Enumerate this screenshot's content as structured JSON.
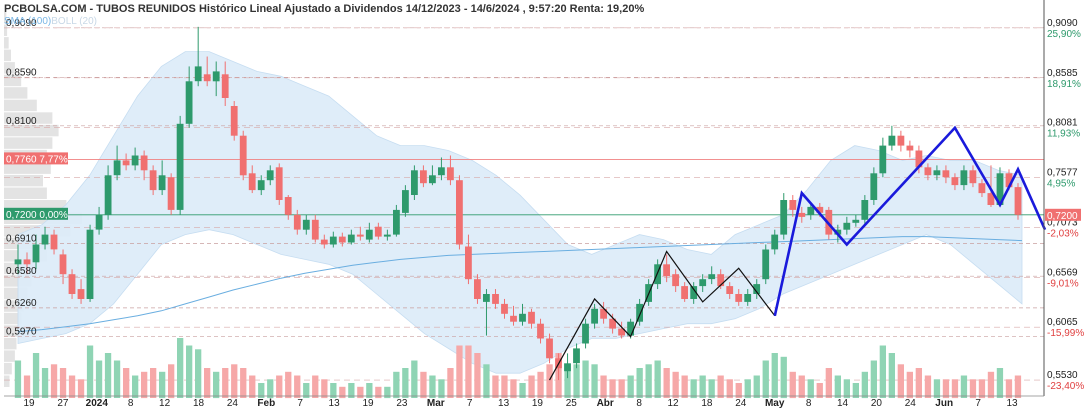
{
  "title": "PCBOLSA.COM - TUBOS REUNIDOS Histórico Lineal Ajustado a Dividendos 14/12/2023 - 14/6/2024 , 9:57:20 Renta: 19,20%",
  "indicators": {
    "sma": "SMA (100)",
    "boll": "BOLL (20)"
  },
  "colors": {
    "up": "#2e9a6c",
    "down": "#f07070",
    "band": "#dcebf8",
    "pattern": "#1a1adb",
    "zigzag": "#111111",
    "sma": "#6aaee0"
  },
  "chart_data": {
    "type": "candlestick",
    "ylim": [
      0.545,
      0.925
    ],
    "x_ticks": [
      "19",
      "27",
      "2024",
      "8",
      "12",
      "18",
      "24",
      "Feb",
      "7",
      "13",
      "19",
      "23",
      "Mar",
      "7",
      "13",
      "19",
      "25",
      "Abr",
      "8",
      "12",
      "18",
      "24",
      "May",
      "8",
      "14",
      "20",
      "24",
      "Jun",
      "7",
      "13"
    ],
    "left_price_labels": [
      "0,9090",
      "0,8590",
      "0,8100",
      "0,6910",
      "0,6580",
      "0,6260",
      "0,5970"
    ],
    "left_price_levels": [
      0.909,
      0.859,
      0.81,
      0.691,
      0.658,
      0.626,
      0.597
    ],
    "right_axis": [
      {
        "price": "0,9090",
        "pct": "25,90%",
        "level": 0.909
      },
      {
        "price": "0,8585",
        "pct": "18,91%",
        "level": 0.8585
      },
      {
        "price": "0,8081",
        "pct": "11,93%",
        "level": 0.8081
      },
      {
        "price": "0,7577",
        "pct": "4,95%",
        "level": 0.7577
      },
      {
        "price": "0,7073",
        "pct": "-2,03%",
        "level": 0.7073
      },
      {
        "price": "0,6569",
        "pct": "-9,01%",
        "level": 0.6569
      },
      {
        "price": "0,6065",
        "pct": "-15,99%",
        "level": 0.6065
      },
      {
        "price": "0,5530",
        "pct": "-23,40%",
        "level": 0.553
      }
    ],
    "reference_lines": [
      {
        "label": "0,7760",
        "pct": "7,77%",
        "level": 0.776
      },
      {
        "label": "0,7200",
        "pct": "0,00%",
        "level": 0.72
      }
    ],
    "last_price_label": "0,7200",
    "last_price": 0.72,
    "candles": [
      {
        "o": 0.67,
        "c": 0.675,
        "h": 0.69,
        "l": 0.66,
        "v": 50
      },
      {
        "o": 0.675,
        "c": 0.67,
        "h": 0.682,
        "l": 0.66,
        "v": 30
      },
      {
        "o": 0.672,
        "c": 0.69,
        "h": 0.7,
        "l": 0.665,
        "v": 60
      },
      {
        "o": 0.69,
        "c": 0.7,
        "h": 0.708,
        "l": 0.685,
        "v": 40
      },
      {
        "o": 0.7,
        "c": 0.685,
        "h": 0.705,
        "l": 0.68,
        "v": 45
      },
      {
        "o": 0.68,
        "c": 0.66,
        "h": 0.685,
        "l": 0.65,
        "v": 40
      },
      {
        "o": 0.66,
        "c": 0.64,
        "h": 0.665,
        "l": 0.635,
        "v": 30
      },
      {
        "o": 0.645,
        "c": 0.635,
        "h": 0.655,
        "l": 0.63,
        "v": 25
      },
      {
        "o": 0.635,
        "c": 0.705,
        "h": 0.71,
        "l": 0.632,
        "v": 70
      },
      {
        "o": 0.705,
        "c": 0.72,
        "h": 0.728,
        "l": 0.7,
        "v": 50
      },
      {
        "o": 0.72,
        "c": 0.76,
        "h": 0.77,
        "l": 0.715,
        "v": 60
      },
      {
        "o": 0.76,
        "c": 0.775,
        "h": 0.79,
        "l": 0.755,
        "v": 50
      },
      {
        "o": 0.775,
        "c": 0.77,
        "h": 0.782,
        "l": 0.765,
        "v": 40
      },
      {
        "o": 0.77,
        "c": 0.78,
        "h": 0.788,
        "l": 0.765,
        "v": 30
      },
      {
        "o": 0.78,
        "c": 0.765,
        "h": 0.785,
        "l": 0.755,
        "v": 35
      },
      {
        "o": 0.765,
        "c": 0.745,
        "h": 0.77,
        "l": 0.74,
        "v": 40
      },
      {
        "o": 0.745,
        "c": 0.76,
        "h": 0.775,
        "l": 0.74,
        "v": 35
      },
      {
        "o": 0.758,
        "c": 0.725,
        "h": 0.762,
        "l": 0.72,
        "v": 45
      },
      {
        "o": 0.725,
        "c": 0.812,
        "h": 0.82,
        "l": 0.72,
        "v": 80
      },
      {
        "o": 0.812,
        "c": 0.855,
        "h": 0.87,
        "l": 0.808,
        "v": 70
      },
      {
        "o": 0.855,
        "c": 0.87,
        "h": 0.91,
        "l": 0.85,
        "v": 65
      },
      {
        "o": 0.862,
        "c": 0.855,
        "h": 0.88,
        "l": 0.85,
        "v": 40
      },
      {
        "o": 0.855,
        "c": 0.865,
        "h": 0.875,
        "l": 0.84,
        "v": 35
      },
      {
        "o": 0.862,
        "c": 0.838,
        "h": 0.875,
        "l": 0.83,
        "v": 40
      },
      {
        "o": 0.83,
        "c": 0.8,
        "h": 0.835,
        "l": 0.795,
        "v": 45
      },
      {
        "o": 0.8,
        "c": 0.76,
        "h": 0.805,
        "l": 0.755,
        "v": 40
      },
      {
        "o": 0.762,
        "c": 0.745,
        "h": 0.77,
        "l": 0.742,
        "v": 30
      },
      {
        "o": 0.745,
        "c": 0.755,
        "h": 0.76,
        "l": 0.74,
        "v": 20
      },
      {
        "o": 0.755,
        "c": 0.765,
        "h": 0.77,
        "l": 0.75,
        "v": 25
      },
      {
        "o": 0.768,
        "c": 0.735,
        "h": 0.772,
        "l": 0.73,
        "v": 30
      },
      {
        "o": 0.738,
        "c": 0.72,
        "h": 0.74,
        "l": 0.715,
        "v": 35
      },
      {
        "o": 0.72,
        "c": 0.705,
        "h": 0.725,
        "l": 0.7,
        "v": 30
      },
      {
        "o": 0.705,
        "c": 0.715,
        "h": 0.72,
        "l": 0.7,
        "v": 20
      },
      {
        "o": 0.715,
        "c": 0.695,
        "h": 0.72,
        "l": 0.692,
        "v": 30
      },
      {
        "o": 0.695,
        "c": 0.69,
        "h": 0.7,
        "l": 0.686,
        "v": 25
      },
      {
        "o": 0.69,
        "c": 0.698,
        "h": 0.703,
        "l": 0.687,
        "v": 20
      },
      {
        "o": 0.698,
        "c": 0.692,
        "h": 0.702,
        "l": 0.688,
        "v": 15
      },
      {
        "o": 0.692,
        "c": 0.7,
        "h": 0.705,
        "l": 0.69,
        "v": 20
      },
      {
        "o": 0.7,
        "c": 0.698,
        "h": 0.708,
        "l": 0.694,
        "v": 15
      },
      {
        "o": 0.695,
        "c": 0.705,
        "h": 0.712,
        "l": 0.692,
        "v": 20
      },
      {
        "o": 0.708,
        "c": 0.698,
        "h": 0.712,
        "l": 0.695,
        "v": 15
      },
      {
        "o": 0.698,
        "c": 0.7,
        "h": 0.705,
        "l": 0.694,
        "v": 15
      },
      {
        "o": 0.7,
        "c": 0.725,
        "h": 0.73,
        "l": 0.698,
        "v": 35
      },
      {
        "o": 0.722,
        "c": 0.745,
        "h": 0.75,
        "l": 0.718,
        "v": 40
      },
      {
        "o": 0.74,
        "c": 0.765,
        "h": 0.77,
        "l": 0.735,
        "v": 50
      },
      {
        "o": 0.765,
        "c": 0.752,
        "h": 0.77,
        "l": 0.748,
        "v": 35
      },
      {
        "o": 0.752,
        "c": 0.76,
        "h": 0.77,
        "l": 0.75,
        "v": 30
      },
      {
        "o": 0.76,
        "c": 0.768,
        "h": 0.778,
        "l": 0.755,
        "v": 25
      },
      {
        "o": 0.768,
        "c": 0.755,
        "h": 0.78,
        "l": 0.75,
        "v": 40
      },
      {
        "o": 0.755,
        "c": 0.69,
        "h": 0.76,
        "l": 0.685,
        "v": 70
      },
      {
        "o": 0.688,
        "c": 0.655,
        "h": 0.7,
        "l": 0.65,
        "v": 70
      },
      {
        "o": 0.655,
        "c": 0.635,
        "h": 0.66,
        "l": 0.63,
        "v": 60
      },
      {
        "o": 0.632,
        "c": 0.64,
        "h": 0.645,
        "l": 0.598,
        "v": 45
      },
      {
        "o": 0.64,
        "c": 0.63,
        "h": 0.645,
        "l": 0.625,
        "v": 30
      },
      {
        "o": 0.63,
        "c": 0.62,
        "h": 0.635,
        "l": 0.615,
        "v": 30
      },
      {
        "o": 0.618,
        "c": 0.612,
        "h": 0.628,
        "l": 0.608,
        "v": 25
      },
      {
        "o": 0.612,
        "c": 0.62,
        "h": 0.63,
        "l": 0.608,
        "v": 20
      },
      {
        "o": 0.622,
        "c": 0.61,
        "h": 0.625,
        "l": 0.605,
        "v": 30
      },
      {
        "o": 0.61,
        "c": 0.595,
        "h": 0.615,
        "l": 0.59,
        "v": 35
      },
      {
        "o": 0.595,
        "c": 0.575,
        "h": 0.6,
        "l": 0.57,
        "v": 45
      },
      {
        "o": 0.575,
        "c": 0.565,
        "h": 0.58,
        "l": 0.553,
        "v": 60
      },
      {
        "o": 0.562,
        "c": 0.57,
        "h": 0.58,
        "l": 0.555,
        "v": 40
      },
      {
        "o": 0.57,
        "c": 0.585,
        "h": 0.59,
        "l": 0.565,
        "v": 45
      },
      {
        "o": 0.59,
        "c": 0.61,
        "h": 0.615,
        "l": 0.585,
        "v": 50
      },
      {
        "o": 0.61,
        "c": 0.625,
        "h": 0.63,
        "l": 0.605,
        "v": 45
      },
      {
        "o": 0.625,
        "c": 0.615,
        "h": 0.632,
        "l": 0.61,
        "v": 30
      },
      {
        "o": 0.615,
        "c": 0.605,
        "h": 0.62,
        "l": 0.6,
        "v": 25
      },
      {
        "o": 0.605,
        "c": 0.598,
        "h": 0.612,
        "l": 0.595,
        "v": 25
      },
      {
        "o": 0.598,
        "c": 0.612,
        "h": 0.615,
        "l": 0.595,
        "v": 30
      },
      {
        "o": 0.612,
        "c": 0.63,
        "h": 0.635,
        "l": 0.608,
        "v": 40
      },
      {
        "o": 0.632,
        "c": 0.65,
        "h": 0.655,
        "l": 0.628,
        "v": 45
      },
      {
        "o": 0.65,
        "c": 0.67,
        "h": 0.675,
        "l": 0.645,
        "v": 50
      },
      {
        "o": 0.67,
        "c": 0.658,
        "h": 0.68,
        "l": 0.652,
        "v": 40
      },
      {
        "o": 0.66,
        "c": 0.648,
        "h": 0.665,
        "l": 0.642,
        "v": 35
      },
      {
        "o": 0.648,
        "c": 0.635,
        "h": 0.652,
        "l": 0.632,
        "v": 30
      },
      {
        "o": 0.635,
        "c": 0.648,
        "h": 0.652,
        "l": 0.63,
        "v": 25
      },
      {
        "o": 0.648,
        "c": 0.655,
        "h": 0.66,
        "l": 0.642,
        "v": 30
      },
      {
        "o": 0.655,
        "c": 0.66,
        "h": 0.668,
        "l": 0.65,
        "v": 25
      },
      {
        "o": 0.66,
        "c": 0.648,
        "h": 0.665,
        "l": 0.645,
        "v": 30
      },
      {
        "o": 0.648,
        "c": 0.64,
        "h": 0.652,
        "l": 0.635,
        "v": 25
      },
      {
        "o": 0.64,
        "c": 0.632,
        "h": 0.645,
        "l": 0.628,
        "v": 20
      },
      {
        "o": 0.632,
        "c": 0.64,
        "h": 0.645,
        "l": 0.628,
        "v": 25
      },
      {
        "o": 0.64,
        "c": 0.65,
        "h": 0.655,
        "l": 0.635,
        "v": 30
      },
      {
        "o": 0.655,
        "c": 0.685,
        "h": 0.69,
        "l": 0.65,
        "v": 50
      },
      {
        "o": 0.685,
        "c": 0.7,
        "h": 0.705,
        "l": 0.68,
        "v": 60
      },
      {
        "o": 0.7,
        "c": 0.735,
        "h": 0.742,
        "l": 0.695,
        "v": 55
      },
      {
        "o": 0.735,
        "c": 0.725,
        "h": 0.74,
        "l": 0.718,
        "v": 35
      },
      {
        "o": 0.722,
        "c": 0.718,
        "h": 0.728,
        "l": 0.712,
        "v": 30
      },
      {
        "o": 0.72,
        "c": 0.728,
        "h": 0.732,
        "l": 0.715,
        "v": 25
      },
      {
        "o": 0.728,
        "c": 0.722,
        "h": 0.732,
        "l": 0.718,
        "v": 20
      },
      {
        "o": 0.725,
        "c": 0.7,
        "h": 0.728,
        "l": 0.695,
        "v": 40
      },
      {
        "o": 0.7,
        "c": 0.705,
        "h": 0.71,
        "l": 0.692,
        "v": 30
      },
      {
        "o": 0.705,
        "c": 0.712,
        "h": 0.718,
        "l": 0.7,
        "v": 25
      },
      {
        "o": 0.712,
        "c": 0.715,
        "h": 0.72,
        "l": 0.708,
        "v": 20
      },
      {
        "o": 0.715,
        "c": 0.735,
        "h": 0.74,
        "l": 0.71,
        "v": 35
      },
      {
        "o": 0.735,
        "c": 0.762,
        "h": 0.768,
        "l": 0.73,
        "v": 50
      },
      {
        "o": 0.762,
        "c": 0.79,
        "h": 0.798,
        "l": 0.758,
        "v": 70
      },
      {
        "o": 0.79,
        "c": 0.8,
        "h": 0.81,
        "l": 0.785,
        "v": 60
      },
      {
        "o": 0.8,
        "c": 0.79,
        "h": 0.805,
        "l": 0.784,
        "v": 45
      },
      {
        "o": 0.79,
        "c": 0.785,
        "h": 0.795,
        "l": 0.778,
        "v": 35
      },
      {
        "o": 0.785,
        "c": 0.768,
        "h": 0.79,
        "l": 0.762,
        "v": 40
      },
      {
        "o": 0.768,
        "c": 0.76,
        "h": 0.772,
        "l": 0.755,
        "v": 30
      },
      {
        "o": 0.76,
        "c": 0.765,
        "h": 0.77,
        "l": 0.755,
        "v": 25
      },
      {
        "o": 0.765,
        "c": 0.758,
        "h": 0.77,
        "l": 0.752,
        "v": 25
      },
      {
        "o": 0.758,
        "c": 0.75,
        "h": 0.762,
        "l": 0.745,
        "v": 25
      },
      {
        "o": 0.75,
        "c": 0.765,
        "h": 0.77,
        "l": 0.745,
        "v": 30
      },
      {
        "o": 0.765,
        "c": 0.752,
        "h": 0.77,
        "l": 0.748,
        "v": 25
      },
      {
        "o": 0.752,
        "c": 0.742,
        "h": 0.756,
        "l": 0.738,
        "v": 25
      },
      {
        "o": 0.742,
        "c": 0.73,
        "h": 0.77,
        "l": 0.728,
        "v": 35
      },
      {
        "o": 0.73,
        "c": 0.762,
        "h": 0.768,
        "l": 0.728,
        "v": 40
      },
      {
        "o": 0.762,
        "c": 0.748,
        "h": 0.766,
        "l": 0.745,
        "v": 25
      },
      {
        "o": 0.748,
        "c": 0.72,
        "h": 0.752,
        "l": 0.715,
        "v": 30
      }
    ],
    "bollinger": {
      "upper": [
        0.7,
        0.71,
        0.73,
        0.76,
        0.8,
        0.84,
        0.87,
        0.885,
        0.885,
        0.875,
        0.865,
        0.86,
        0.85,
        0.84,
        0.82,
        0.8,
        0.79,
        0.79,
        0.785,
        0.775,
        0.76,
        0.74,
        0.715,
        0.69,
        0.68,
        0.69,
        0.7,
        0.695,
        0.685,
        0.68,
        0.7,
        0.71,
        0.72,
        0.745,
        0.775,
        0.79,
        0.785,
        0.775,
        0.78,
        0.775,
        0.775,
        0.765,
        0.76
      ],
      "lower": [
        0.59,
        0.595,
        0.6,
        0.61,
        0.63,
        0.66,
        0.69,
        0.7,
        0.705,
        0.7,
        0.69,
        0.68,
        0.675,
        0.67,
        0.66,
        0.64,
        0.62,
        0.6,
        0.585,
        0.57,
        0.56,
        0.56,
        0.57,
        0.585,
        0.595,
        0.595,
        0.6,
        0.605,
        0.61,
        0.61,
        0.615,
        0.625,
        0.64,
        0.65,
        0.66,
        0.67,
        0.68,
        0.69,
        0.7,
        0.69,
        0.67,
        0.65,
        0.63
      ]
    },
    "sma100": [
      0.602,
      0.604,
      0.607,
      0.61,
      0.614,
      0.618,
      0.623,
      0.63,
      0.637,
      0.644,
      0.65,
      0.656,
      0.661,
      0.665,
      0.669,
      0.672,
      0.675,
      0.677,
      0.679,
      0.68,
      0.681,
      0.682,
      0.683,
      0.684,
      0.685,
      0.686,
      0.687,
      0.688,
      0.689,
      0.69,
      0.691,
      0.692,
      0.693,
      0.694,
      0.695,
      0.696,
      0.697,
      0.698,
      0.698,
      0.697,
      0.696,
      0.695,
      0.694
    ],
    "black_zigzag": [
      {
        "i": 59,
        "p": 0.553
      },
      {
        "i": 64,
        "p": 0.635
      },
      {
        "i": 68,
        "p": 0.597
      },
      {
        "i": 72,
        "p": 0.683
      },
      {
        "i": 76,
        "p": 0.632
      },
      {
        "i": 80,
        "p": 0.666
      },
      {
        "i": 84,
        "p": 0.618
      }
    ],
    "blue_pattern": [
      {
        "i": 84,
        "p": 0.618
      },
      {
        "i": 87,
        "p": 0.742
      },
      {
        "i": 92,
        "p": 0.69
      },
      {
        "i": 104,
        "p": 0.808
      },
      {
        "i": 109,
        "p": 0.73
      },
      {
        "i": 111,
        "p": 0.766
      },
      {
        "i": 114,
        "p": 0.705
      }
    ],
    "volume_profile": [
      0.07,
      0.1,
      0.14,
      0.16,
      0.18,
      0.22,
      0.25,
      0.3,
      0.35,
      0.42,
      0.55,
      0.7,
      0.85,
      1.0,
      0.8,
      0.55,
      0.5,
      0.6,
      0.55,
      0.62,
      0.7,
      0.62,
      0.42,
      0.3,
      0.22,
      0.14,
      0.09,
      0.06,
      0.04,
      0.03
    ]
  }
}
